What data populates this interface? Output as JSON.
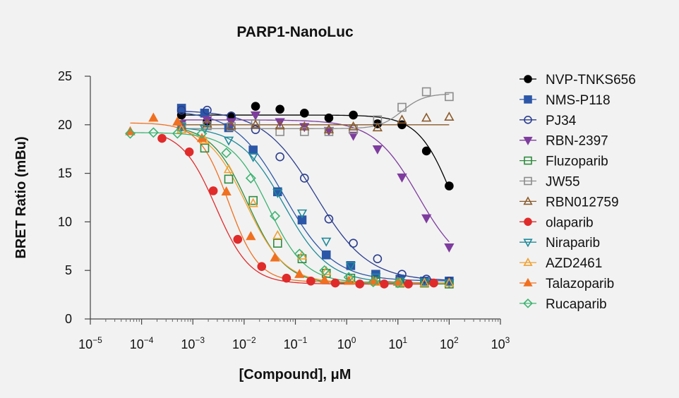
{
  "chart_data": {
    "type": "scatter",
    "title": "PARP1-NanoLuc",
    "xlabel": "[Compound], μM",
    "ylabel": "BRET Ratio (mBu)",
    "xscale": "log",
    "xlim": [
      1e-05,
      1000
    ],
    "ylim": [
      0,
      25
    ],
    "x_tick_labels": [
      "10−5",
      "10−4",
      "10−3",
      "10−2",
      "10−1",
      "100",
      "101",
      "102",
      "103"
    ],
    "x_tick_exponents": [
      -5,
      -4,
      -3,
      -2,
      -1,
      0,
      1,
      2,
      3
    ],
    "y_ticks": [
      0,
      5,
      10,
      15,
      20,
      25
    ],
    "legend_position": "right",
    "grid": false,
    "series": [
      {
        "name": "NVP-TNKS656",
        "color": "#000000",
        "marker": "circle",
        "filled": true,
        "x": [
          0.0006,
          0.0019,
          0.0056,
          0.0167,
          0.05,
          0.15,
          0.45,
          1.35,
          4.0,
          12.0,
          36.0,
          100.0
        ],
        "y": [
          21.0,
          20.3,
          20.9,
          21.9,
          21.6,
          21.2,
          20.7,
          21.0,
          20.1,
          20.0,
          17.3,
          13.7
        ],
        "fit": {
          "top": 21.0,
          "bottom": 3.8,
          "ec50": 120,
          "hill": 1.3
        }
      },
      {
        "name": "NMS-P118",
        "color": "#2c57a8",
        "marker": "square",
        "filled": true,
        "x": [
          0.0006,
          0.0017,
          0.005,
          0.015,
          0.045,
          0.135,
          0.4,
          1.2,
          3.7,
          11.0,
          33.0,
          100.0
        ],
        "y": [
          21.7,
          21.2,
          19.7,
          17.4,
          13.1,
          10.2,
          6.6,
          5.5,
          4.6,
          4.1,
          3.9,
          3.9
        ],
        "fit": {
          "top": 21.5,
          "bottom": 3.9,
          "ec50": 0.06,
          "hill": 0.9
        }
      },
      {
        "name": "PJ34",
        "color": "#2c3e8f",
        "marker": "circle",
        "filled": false,
        "x": [
          0.0006,
          0.0019,
          0.0056,
          0.0167,
          0.05,
          0.15,
          0.45,
          1.35,
          4.0,
          12.0,
          36.0,
          100.0
        ],
        "y": [
          21.5,
          21.5,
          20.9,
          19.5,
          16.7,
          14.5,
          10.3,
          7.8,
          6.2,
          4.6,
          4.1,
          3.9
        ],
        "fit": {
          "top": 21.5,
          "bottom": 3.9,
          "ec50": 0.25,
          "hill": 0.85
        }
      },
      {
        "name": "RBN-2397",
        "color": "#7e3c9e",
        "marker": "triangle-down",
        "filled": true,
        "x": [
          0.0006,
          0.0019,
          0.0056,
          0.0167,
          0.05,
          0.15,
          0.45,
          1.35,
          4.0,
          12.0,
          36.0,
          100.0
        ],
        "y": [
          20.1,
          20.5,
          20.3,
          21.0,
          20.3,
          19.8,
          19.4,
          18.9,
          17.5,
          14.6,
          10.4,
          7.4
        ],
        "fit": {
          "top": 20.5,
          "bottom": 4.8,
          "ec50": 25,
          "hill": 1.0
        }
      },
      {
        "name": "Fluzoparib",
        "color": "#2e8b3e",
        "marker": "square",
        "filled": false,
        "x": [
          0.0006,
          0.0017,
          0.005,
          0.015,
          0.045,
          0.135,
          0.4,
          1.2,
          3.7,
          11.0,
          33.0,
          100.0
        ],
        "y": [
          19.8,
          17.6,
          14.4,
          12.2,
          7.8,
          6.2,
          4.7,
          4.2,
          3.9,
          3.7,
          3.7,
          3.6
        ],
        "fit": {
          "top": 20.0,
          "bottom": 3.6,
          "ec50": 0.012,
          "hill": 1.2
        }
      },
      {
        "name": "JW55",
        "color": "#8c8c8c",
        "marker": "square",
        "filled": false,
        "x": [
          0.0006,
          0.0019,
          0.0056,
          0.0167,
          0.05,
          0.15,
          0.45,
          1.35,
          4.0,
          12.0,
          36.0,
          100.0
        ],
        "y": [
          19.8,
          19.9,
          19.8,
          20.1,
          19.3,
          19.3,
          19.3,
          19.5,
          20.5,
          21.8,
          23.4,
          22.9
        ],
        "fit": {
          "top": 23.2,
          "bottom": 19.6,
          "ec50": 12,
          "hill": 2.0,
          "rising": true
        }
      },
      {
        "name": "RBN012759",
        "color": "#8b5a2b",
        "marker": "triangle-up",
        "filled": false,
        "x": [
          0.0006,
          0.0019,
          0.0056,
          0.0167,
          0.05,
          0.15,
          0.45,
          1.35,
          4.0,
          12.0,
          36.0,
          100.0
        ],
        "y": [
          19.9,
          20.1,
          19.9,
          20.0,
          19.9,
          19.8,
          19.5,
          19.8,
          19.7,
          20.5,
          20.7,
          20.8
        ],
        "fit": {
          "flat": 20.0
        }
      },
      {
        "name": "olaparib",
        "color": "#e02b2b",
        "marker": "circle",
        "filled": true,
        "x": [
          0.00025,
          0.00085,
          0.0025,
          0.0075,
          0.022,
          0.067,
          0.2,
          0.6,
          1.8,
          5.4,
          16.0,
          50.0
        ],
        "y": [
          18.6,
          17.2,
          13.2,
          8.2,
          5.4,
          4.2,
          3.9,
          3.7,
          3.6,
          3.6,
          3.6,
          3.7
        ],
        "fit": {
          "top": 19.5,
          "bottom": 3.6,
          "ec50": 0.0028,
          "hill": 1.3
        }
      },
      {
        "name": "Niraparib",
        "color": "#1f8a9a",
        "marker": "triangle-down",
        "filled": false,
        "x": [
          0.0006,
          0.0017,
          0.005,
          0.015,
          0.045,
          0.135,
          0.4,
          1.2,
          3.7,
          11.0,
          33.0,
          100.0
        ],
        "y": [
          19.8,
          19.6,
          18.4,
          16.7,
          13.0,
          10.9,
          8.0,
          5.5,
          4.3,
          3.9,
          3.8,
          3.7
        ],
        "fit": {
          "top": 19.8,
          "bottom": 3.7,
          "ec50": 0.06,
          "hill": 1.0
        }
      },
      {
        "name": "AZD2461",
        "color": "#f0a030",
        "marker": "triangle-up",
        "filled": false,
        "x": [
          0.0006,
          0.0017,
          0.005,
          0.015,
          0.045,
          0.135,
          0.4,
          1.2,
          3.7,
          11.0,
          33.0,
          100.0
        ],
        "y": [
          19.5,
          18.4,
          15.4,
          11.9,
          8.6,
          6.5,
          4.9,
          4.0,
          3.8,
          3.7,
          3.7,
          3.7
        ],
        "fit": {
          "top": 20.0,
          "bottom": 3.7,
          "ec50": 0.011,
          "hill": 1.15
        }
      },
      {
        "name": "Talazoparib",
        "color": "#f07020",
        "marker": "triangle-up",
        "filled": true,
        "x": [
          6e-05,
          0.00017,
          0.0005,
          0.0015,
          0.0045,
          0.0135,
          0.04,
          0.12,
          0.37,
          1.1,
          3.3,
          10.0
        ],
        "y": [
          19.3,
          20.7,
          20.3,
          18.6,
          13.1,
          8.5,
          6.3,
          4.6,
          4.0,
          3.9,
          3.9,
          3.8
        ],
        "fit": {
          "top": 20.2,
          "bottom": 3.8,
          "ec50": 0.005,
          "hill": 1.5
        }
      },
      {
        "name": "Rucaparib",
        "color": "#3cb371",
        "marker": "diamond",
        "filled": false,
        "x": [
          6e-05,
          0.00017,
          0.0005,
          0.0015,
          0.0045,
          0.0135,
          0.04,
          0.12,
          0.37,
          1.1,
          3.3,
          10.0
        ],
        "y": [
          19.1,
          19.2,
          19.1,
          19.1,
          17.1,
          14.5,
          10.6,
          6.7,
          5.0,
          4.3,
          3.8,
          3.7
        ],
        "fit": {
          "top": 19.2,
          "bottom": 3.7,
          "ec50": 0.03,
          "hill": 1.2
        }
      }
    ]
  }
}
